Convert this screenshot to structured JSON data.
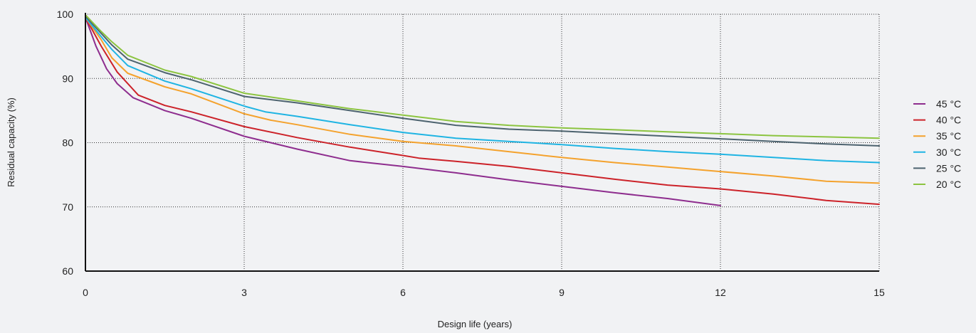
{
  "chart_data": {
    "type": "line",
    "xlabel": "Design life (years)",
    "ylabel": "Residual capacity (%)",
    "xlim": [
      0,
      15
    ],
    "ylim": [
      60,
      100
    ],
    "xticks": [
      0,
      3,
      6,
      9,
      12,
      15
    ],
    "yticks": [
      60,
      70,
      80,
      90,
      100
    ],
    "grid": "dotted",
    "legend_position": "right",
    "series": [
      {
        "name": "45 °C",
        "color": "#8e2d8e",
        "points": [
          [
            0,
            99.5
          ],
          [
            0.2,
            95
          ],
          [
            0.4,
            91.5
          ],
          [
            0.6,
            89.2
          ],
          [
            0.9,
            87
          ],
          [
            1.5,
            85
          ],
          [
            2,
            83.8
          ],
          [
            3,
            81
          ],
          [
            4,
            79
          ],
          [
            5,
            77.2
          ],
          [
            6,
            76.3
          ],
          [
            7,
            75.3
          ],
          [
            8,
            74.2
          ],
          [
            9,
            73.2
          ],
          [
            10,
            72.2
          ],
          [
            11,
            71.3
          ],
          [
            12,
            70.2
          ]
        ]
      },
      {
        "name": "40 °C",
        "color": "#cc2229",
        "points": [
          [
            0,
            99.5
          ],
          [
            0.3,
            95
          ],
          [
            0.6,
            91
          ],
          [
            1,
            87.4
          ],
          [
            1.5,
            85.8
          ],
          [
            2,
            84.8
          ],
          [
            3,
            82.5
          ],
          [
            4,
            80.8
          ],
          [
            5,
            79.3
          ],
          [
            6,
            78
          ],
          [
            6.3,
            77.6
          ],
          [
            7,
            77.1
          ],
          [
            8,
            76.3
          ],
          [
            9,
            75.3
          ],
          [
            10,
            74.3
          ],
          [
            11,
            73.4
          ],
          [
            12,
            72.8
          ],
          [
            13,
            72
          ],
          [
            14,
            71
          ],
          [
            15,
            70.4
          ]
        ]
      },
      {
        "name": "35 °C",
        "color": "#f4a22d",
        "points": [
          [
            0,
            99.5
          ],
          [
            0.3,
            96
          ],
          [
            0.5,
            93.2
          ],
          [
            0.8,
            90.8
          ],
          [
            1.5,
            88.7
          ],
          [
            2,
            87.6
          ],
          [
            3,
            84.5
          ],
          [
            3.5,
            83.5
          ],
          [
            4,
            82.8
          ],
          [
            5,
            81.3
          ],
          [
            6,
            80.2
          ],
          [
            7,
            79.5
          ],
          [
            8,
            78.6
          ],
          [
            9,
            77.7
          ],
          [
            10,
            76.9
          ],
          [
            11,
            76.2
          ],
          [
            12,
            75.5
          ],
          [
            13,
            74.8
          ],
          [
            14,
            74
          ],
          [
            15,
            73.7
          ]
        ]
      },
      {
        "name": "30 °C",
        "color": "#1fb4e3",
        "points": [
          [
            0,
            99.5
          ],
          [
            0.3,
            96.5
          ],
          [
            0.5,
            94.5
          ],
          [
            0.8,
            92
          ],
          [
            1.5,
            89.6
          ],
          [
            2,
            88.4
          ],
          [
            3,
            85.7
          ],
          [
            3.4,
            84.8
          ],
          [
            4,
            84.1
          ],
          [
            5,
            82.8
          ],
          [
            6,
            81.6
          ],
          [
            7,
            80.7
          ],
          [
            8,
            80.2
          ],
          [
            9,
            79.7
          ],
          [
            10,
            79.1
          ],
          [
            11,
            78.6
          ],
          [
            12,
            78.2
          ],
          [
            13,
            77.7
          ],
          [
            14,
            77.2
          ],
          [
            15,
            76.9
          ]
        ]
      },
      {
        "name": "25 °C",
        "color": "#4d636f",
        "points": [
          [
            0,
            99.7
          ],
          [
            0.3,
            97
          ],
          [
            0.5,
            95.2
          ],
          [
            0.8,
            93
          ],
          [
            1.5,
            90.9
          ],
          [
            2,
            89.8
          ],
          [
            3,
            87.2
          ],
          [
            4,
            86.2
          ],
          [
            5,
            85
          ],
          [
            6,
            83.8
          ],
          [
            7,
            82.7
          ],
          [
            8,
            82.1
          ],
          [
            9,
            81.8
          ],
          [
            10,
            81.4
          ],
          [
            11,
            81
          ],
          [
            12,
            80.6
          ],
          [
            13,
            80.2
          ],
          [
            14,
            79.8
          ],
          [
            15,
            79.5
          ]
        ]
      },
      {
        "name": "20 °C",
        "color": "#8cc440",
        "points": [
          [
            0,
            99.9
          ],
          [
            0.3,
            97.3
          ],
          [
            0.5,
            95.7
          ],
          [
            0.8,
            93.6
          ],
          [
            1.5,
            91.3
          ],
          [
            2,
            90.3
          ],
          [
            3,
            87.7
          ],
          [
            4,
            86.5
          ],
          [
            5,
            85.3
          ],
          [
            6,
            84.3
          ],
          [
            7,
            83.3
          ],
          [
            8,
            82.7
          ],
          [
            9,
            82.3
          ],
          [
            10,
            82
          ],
          [
            11,
            81.7
          ],
          [
            12,
            81.4
          ],
          [
            13,
            81.1
          ],
          [
            14,
            80.9
          ],
          [
            15,
            80.7
          ]
        ]
      }
    ]
  }
}
